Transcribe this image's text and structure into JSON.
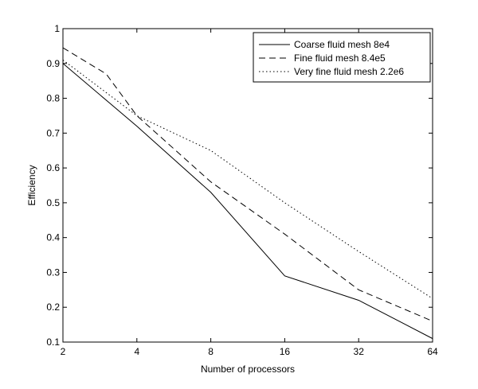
{
  "chart_data": {
    "type": "line",
    "title": "",
    "xlabel": "Number of processors",
    "ylabel": "Efficiency",
    "xscale": "log2",
    "xlim": [
      2,
      64
    ],
    "ylim": [
      0.1,
      1
    ],
    "xticks": [
      2,
      4,
      8,
      16,
      32,
      64
    ],
    "xtick_labels": [
      "2",
      "4",
      "8",
      "16",
      "32",
      "64"
    ],
    "yticks": [
      0.1,
      0.2,
      0.3,
      0.4,
      0.5,
      0.6,
      0.7,
      0.8,
      0.9,
      1
    ],
    "ytick_labels": [
      "0.1",
      "0.2",
      "0.3",
      "0.4",
      "0.5",
      "0.6",
      "0.7",
      "0.8",
      "0.9",
      "1"
    ],
    "grid": false,
    "legend_position": "top-right",
    "series": [
      {
        "name": "Coarse fluid mesh 8e4",
        "style": "solid",
        "color": "#000000",
        "x": [
          2,
          4,
          8,
          16,
          32,
          64
        ],
        "y": [
          0.9,
          0.72,
          0.53,
          0.29,
          0.22,
          0.11
        ]
      },
      {
        "name": "Fine fluid mesh 8.4e5",
        "style": "dashed",
        "color": "#000000",
        "x": [
          2,
          3,
          4,
          8,
          16,
          32,
          64
        ],
        "y": [
          0.945,
          0.87,
          0.75,
          0.56,
          0.41,
          0.25,
          0.16
        ]
      },
      {
        "name": "Very fine fluid mesh 2.2e6",
        "style": "dotted",
        "color": "#000000",
        "x": [
          2,
          4,
          8,
          16,
          32,
          64
        ],
        "y": [
          0.91,
          0.75,
          0.65,
          0.5,
          0.36,
          0.225
        ]
      }
    ]
  }
}
